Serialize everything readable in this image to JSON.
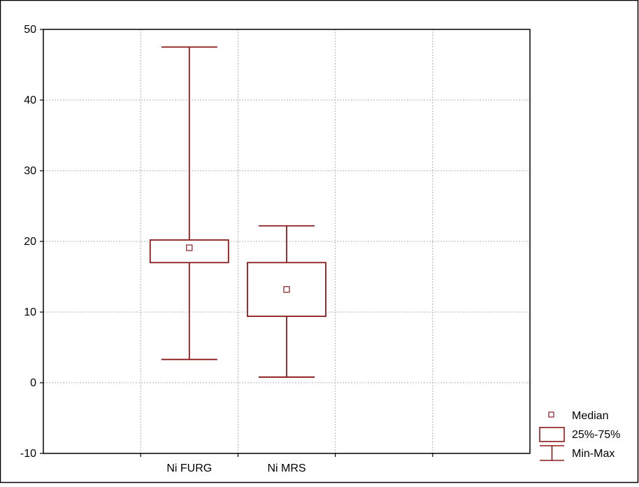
{
  "chart_data": {
    "type": "box",
    "ylim": [
      -10,
      50
    ],
    "yticks": [
      -10,
      0,
      10,
      20,
      30,
      40,
      50
    ],
    "grid": true,
    "legend_position": "bottom-right",
    "categories": [
      "Ni FURG",
      "Ni MRS"
    ],
    "boxes": [
      {
        "category": "Ni FURG",
        "min": 3.3,
        "q1": 17.0,
        "median": 19.1,
        "q3": 20.2,
        "max": 47.5
      },
      {
        "category": "Ni MRS",
        "min": 0.8,
        "q1": 9.4,
        "median": 13.2,
        "q3": 17.0,
        "max": 22.2
      }
    ],
    "legend": {
      "median": "Median",
      "box": "25%-75%",
      "whisker": "Min-Max"
    },
    "colors": {
      "series": "#8b1a1a",
      "grid": "#b0b0b0",
      "axis": "#000000"
    }
  }
}
